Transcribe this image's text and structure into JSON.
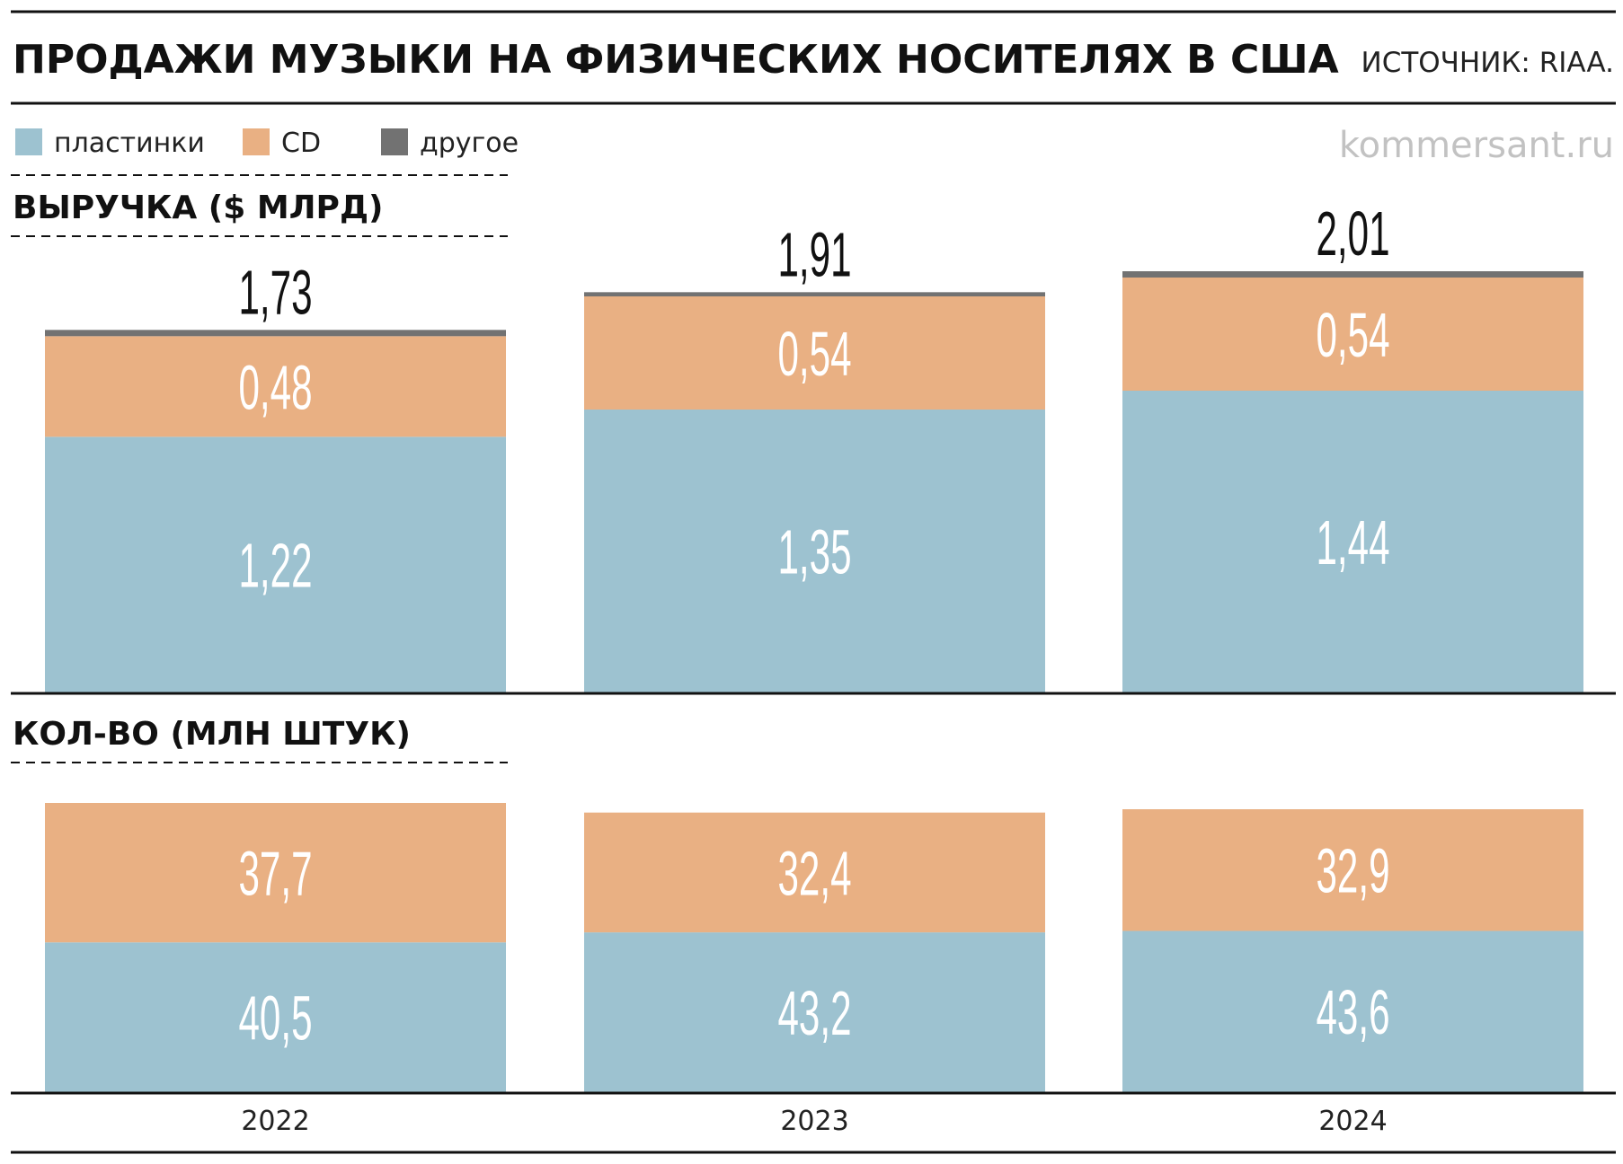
{
  "title": "ПРОДАЖИ МУЗЫКИ НА ФИЗИЧЕСКИХ НОСИТЕЛЯХ В США",
  "source": "ИСТОЧНИК: RIAA.",
  "watermark": "kommersant.ru",
  "colors": {
    "vinyl": "#9dc2d0",
    "cd": "#e9b083",
    "other": "#727272"
  },
  "legend": [
    {
      "label": "пластинки",
      "color_key": "vinyl"
    },
    {
      "label": "CD",
      "color_key": "cd"
    },
    {
      "label": "другое",
      "color_key": "other"
    }
  ],
  "chart_data": [
    {
      "type": "bar",
      "stacked": true,
      "title": "ВЫРУЧКА ($ МЛРД)",
      "categories": [
        "2022",
        "2023",
        "2024"
      ],
      "series": [
        {
          "name": "пластинки",
          "color_key": "vinyl",
          "values": [
            1.22,
            1.35,
            1.44
          ],
          "labels": [
            "1,22",
            "1,35",
            "1,44"
          ]
        },
        {
          "name": "CD",
          "color_key": "cd",
          "values": [
            0.48,
            0.54,
            0.54
          ],
          "labels": [
            "0,48",
            "0,54",
            "0,54"
          ]
        },
        {
          "name": "другое",
          "color_key": "other",
          "values": [
            0.03,
            0.02,
            0.03
          ]
        }
      ],
      "totals": [
        1.73,
        1.91,
        2.01
      ],
      "total_labels": [
        "1,73",
        "1,91",
        "2,01"
      ],
      "ylim": [
        0,
        2.01
      ]
    },
    {
      "type": "bar",
      "stacked": true,
      "title": "КОЛ-ВО (МЛН ШТУК)",
      "categories": [
        "2022",
        "2023",
        "2024"
      ],
      "series": [
        {
          "name": "пластинки",
          "color_key": "vinyl",
          "values": [
            40.5,
            43.2,
            43.6
          ],
          "labels": [
            "40,5",
            "43,2",
            "43,6"
          ]
        },
        {
          "name": "CD",
          "color_key": "cd",
          "values": [
            37.7,
            32.4,
            32.9
          ],
          "labels": [
            "37,7",
            "32,4",
            "32,9"
          ]
        }
      ],
      "ylim": [
        0,
        78.2
      ]
    }
  ]
}
